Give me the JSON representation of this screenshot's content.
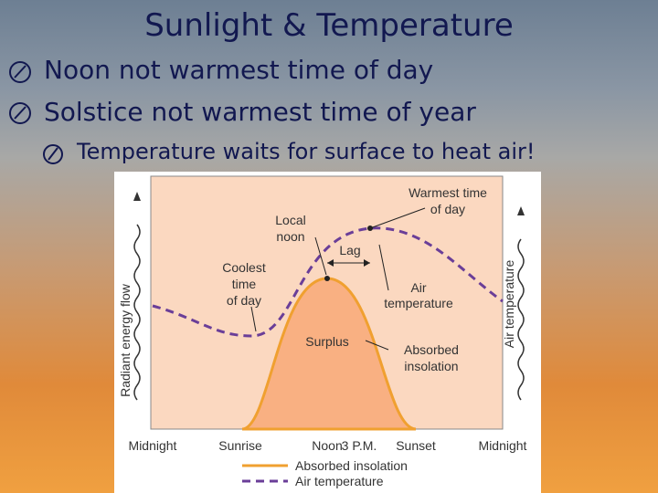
{
  "title": "Sunlight & Temperature",
  "bullets": [
    "Noon not warmest time of day",
    "Solstice not warmest time of year"
  ],
  "sub_bullets": [
    "Temperature waits for surface to heat air!"
  ],
  "figure": {
    "y_label": "Radiant energy flow",
    "y2_label": "Air temperature",
    "x_labels": [
      "Midnight",
      "Sunrise",
      "Noon",
      "3 P.M.",
      "Sunset",
      "Midnight"
    ],
    "legend": [
      "Absorbed insolation",
      "Air temperature"
    ],
    "annotations": [
      [
        "Warmest time",
        "of day"
      ],
      [
        "Local",
        "noon"
      ],
      [
        "Lag"
      ],
      [
        "Coolest",
        "time",
        "of day"
      ],
      [
        "Air",
        "temperature"
      ],
      [
        "Surplus"
      ],
      [
        "Absorbed",
        "insolation"
      ]
    ]
  }
}
